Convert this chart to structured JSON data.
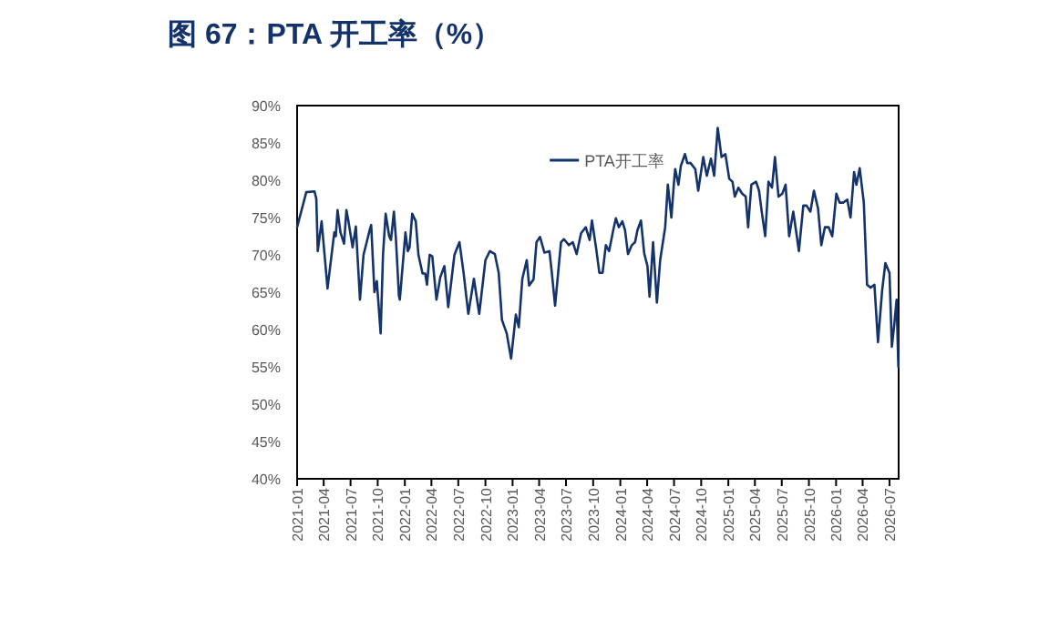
{
  "chart_data": {
    "type": "line",
    "title": "图 67：PTA 开工率（%）",
    "x": [
      "2021-01-01",
      "2021-02-01",
      "2021-03-01",
      "2021-03-07",
      "2021-03-12",
      "2021-03-25",
      "2021-04-14",
      "2021-05-07",
      "2021-05-12",
      "2021-05-18",
      "2021-05-28",
      "2021-06-09",
      "2021-06-17",
      "2021-06-24",
      "2021-07-08",
      "2021-07-19",
      "2021-08-02",
      "2021-08-14",
      "2021-09-05",
      "2021-09-09",
      "2021-09-20",
      "2021-09-28",
      "2021-10-11",
      "2021-10-19",
      "2021-10-28",
      "2021-11-09",
      "2021-11-15",
      "2021-11-25",
      "2021-12-02",
      "2021-12-12",
      "2021-12-15",
      "2022-01-03",
      "2022-01-11",
      "2022-01-17",
      "2022-01-26",
      "2022-02-07",
      "2022-02-16",
      "2022-03-02",
      "2022-03-11",
      "2022-03-17",
      "2022-03-26",
      "2022-04-04",
      "2022-04-18",
      "2022-05-01",
      "2022-05-15",
      "2022-05-28",
      "2022-06-18",
      "2022-07-05",
      "2022-07-19",
      "2022-08-04",
      "2022-08-23",
      "2022-09-10",
      "2022-10-01",
      "2022-10-16",
      "2022-11-02",
      "2022-11-15",
      "2022-11-26",
      "2022-12-12",
      "2022-12-27",
      "2023-01-12",
      "2023-01-22",
      "2023-02-03",
      "2023-02-18",
      "2023-02-26",
      "2023-03-13",
      "2023-03-23",
      "2023-04-04",
      "2023-04-19",
      "2023-05-06",
      "2023-05-14",
      "2023-05-25",
      "2023-06-14",
      "2023-06-24",
      "2023-07-11",
      "2023-07-24",
      "2023-08-06",
      "2023-08-21",
      "2023-09-06",
      "2023-09-19",
      "2023-09-27",
      "2023-10-11",
      "2023-10-22",
      "2023-11-02",
      "2023-11-13",
      "2023-11-24",
      "2023-12-08",
      "2023-12-17",
      "2023-12-27",
      "2024-01-08",
      "2024-01-17",
      "2024-01-27",
      "2024-02-09",
      "2024-02-20",
      "2024-02-28",
      "2024-03-11",
      "2024-03-22",
      "2024-04-02",
      "2024-04-09",
      "2024-04-21",
      "2024-05-04",
      "2024-05-15",
      "2024-06-01",
      "2024-06-10",
      "2024-06-22",
      "2024-07-01",
      "2024-07-05",
      "2024-07-16",
      "2024-07-24",
      "2024-08-07",
      "2024-08-15",
      "2024-08-26",
      "2024-09-11",
      "2024-09-21",
      "2024-10-08",
      "2024-10-20",
      "2024-11-03",
      "2024-11-14",
      "2024-11-26",
      "2024-12-09",
      "2024-12-22",
      "2025-01-04",
      "2025-01-15",
      "2025-01-23",
      "2025-02-04",
      "2025-02-17",
      "2025-03-01",
      "2025-03-09",
      "2025-03-20",
      "2025-04-05",
      "2025-04-15",
      "2025-04-24",
      "2025-05-06",
      "2025-05-17",
      "2025-05-29",
      "2025-06-08",
      "2025-06-20",
      "2025-07-03",
      "2025-07-14",
      "2025-07-26",
      "2025-08-09",
      "2025-08-21",
      "2025-08-28",
      "2025-09-12",
      "2025-09-23",
      "2025-10-06",
      "2025-10-18",
      "2025-11-01",
      "2025-11-12",
      "2025-11-24",
      "2025-12-07",
      "2025-12-19",
      "2026-01-02",
      "2026-01-13",
      "2026-01-25",
      "2026-02-08",
      "2026-02-19",
      "2026-03-03",
      "2026-03-11",
      "2026-03-22",
      "2026-04-05",
      "2026-04-16",
      "2026-04-28",
      "2026-05-11",
      "2026-05-23",
      "2026-06-06",
      "2026-06-17",
      "2026-07-01",
      "2026-07-09",
      "2026-07-18",
      "2026-07-25",
      "2026-07-31"
    ],
    "series": [
      {
        "name": "PTA开工率",
        "color": "#14336b",
        "values": [
          73.7,
          78.4,
          78.5,
          77.5,
          70.5,
          74.5,
          65.5,
          73,
          72.5,
          76,
          73,
          71.5,
          76,
          74.5,
          71,
          73.8,
          64,
          70,
          73.5,
          74,
          65,
          66.5,
          59.5,
          70,
          75.5,
          72.5,
          72,
          75.8,
          72,
          64.5,
          64,
          73,
          70.5,
          71,
          75.5,
          74.5,
          70,
          67.5,
          67.5,
          66,
          70,
          69.8,
          64,
          67,
          68.5,
          63,
          70,
          71.7,
          67.6,
          62.1,
          66.8,
          62.1,
          69.3,
          70.5,
          70.1,
          67.6,
          61.3,
          59.5,
          56.1,
          62,
          60.3,
          66.8,
          69.3,
          65.9,
          66.7,
          71.7,
          72.4,
          70.3,
          70.5,
          67.6,
          63.2,
          71.7,
          72.1,
          71.3,
          71.7,
          70.1,
          72.9,
          73.7,
          72,
          74.6,
          70.9,
          67.6,
          67.6,
          71.3,
          70.5,
          73.3,
          74.9,
          73.7,
          74.5,
          73.3,
          70.1,
          71.3,
          71.7,
          73.3,
          74.6,
          70.2,
          68.5,
          64.4,
          71.7,
          63.6,
          69.3,
          73.7,
          79.4,
          75,
          79.8,
          81.5,
          79.4,
          81.9,
          83.5,
          82.3,
          82.3,
          81.5,
          78.6,
          83.1,
          80.6,
          82.9,
          80.6,
          87,
          83.1,
          83.5,
          80.2,
          79.8,
          77.8,
          79,
          78.2,
          77.8,
          73.7,
          79.4,
          79.8,
          78.6,
          75.8,
          72.5,
          79.8,
          79,
          83.1,
          77.8,
          78.2,
          79.4,
          72.5,
          75.8,
          72.5,
          70.5,
          76.6,
          76.6,
          75.8,
          78.6,
          76.2,
          71.3,
          73.7,
          73.7,
          72.5,
          78.2,
          77,
          77,
          77.4,
          75,
          81.1,
          79.4,
          81.6,
          77,
          66,
          65.6,
          66,
          58.3,
          65.2,
          68.9,
          67.6,
          57.7,
          61,
          64,
          55
        ]
      }
    ],
    "xlim": [
      "2021-01-01",
      "2026-08-01"
    ],
    "xticks": [
      {
        "value": "2021-01-01",
        "label": "2021-01"
      },
      {
        "value": "2021-04-01",
        "label": "2021-04"
      },
      {
        "value": "2021-07-01",
        "label": "2021-07"
      },
      {
        "value": "2021-10-01",
        "label": "2021-10"
      },
      {
        "value": "2022-01-01",
        "label": "2022-01"
      },
      {
        "value": "2022-04-01",
        "label": "2022-04"
      },
      {
        "value": "2022-07-01",
        "label": "2022-07"
      },
      {
        "value": "2022-10-01",
        "label": "2022-10"
      },
      {
        "value": "2023-01-01",
        "label": "2023-01"
      },
      {
        "value": "2023-04-01",
        "label": "2023-04"
      },
      {
        "value": "2023-07-01",
        "label": "2023-07"
      },
      {
        "value": "2023-10-01",
        "label": "2023-10"
      },
      {
        "value": "2024-01-01",
        "label": "2024-01"
      },
      {
        "value": "2024-04-01",
        "label": "2024-04"
      },
      {
        "value": "2024-07-01",
        "label": "2024-07"
      },
      {
        "value": "2024-10-01",
        "label": "2024-10"
      },
      {
        "value": "2025-01-01",
        "label": "2025-01"
      },
      {
        "value": "2025-04-01",
        "label": "2025-04"
      },
      {
        "value": "2025-07-01",
        "label": "2025-07"
      },
      {
        "value": "2025-10-01",
        "label": "2025-10"
      },
      {
        "value": "2026-01-01",
        "label": "2026-01"
      },
      {
        "value": "2026-04-01",
        "label": "2026-04"
      },
      {
        "value": "2026-07-01",
        "label": "2026-07"
      }
    ],
    "ylim": [
      40,
      90
    ],
    "yticks": [
      {
        "value": 40,
        "label": "40%"
      },
      {
        "value": 45,
        "label": "45%"
      },
      {
        "value": 50,
        "label": "50%"
      },
      {
        "value": 55,
        "label": "55%"
      },
      {
        "value": 60,
        "label": "60%"
      },
      {
        "value": 65,
        "label": "65%"
      },
      {
        "value": 70,
        "label": "70%"
      },
      {
        "value": 75,
        "label": "75%"
      },
      {
        "value": 80,
        "label": "80%"
      },
      {
        "value": 85,
        "label": "85%"
      },
      {
        "value": 90,
        "label": "90%"
      }
    ],
    "legend": "top",
    "grid": false,
    "line_style": "solid",
    "marker": "none"
  }
}
